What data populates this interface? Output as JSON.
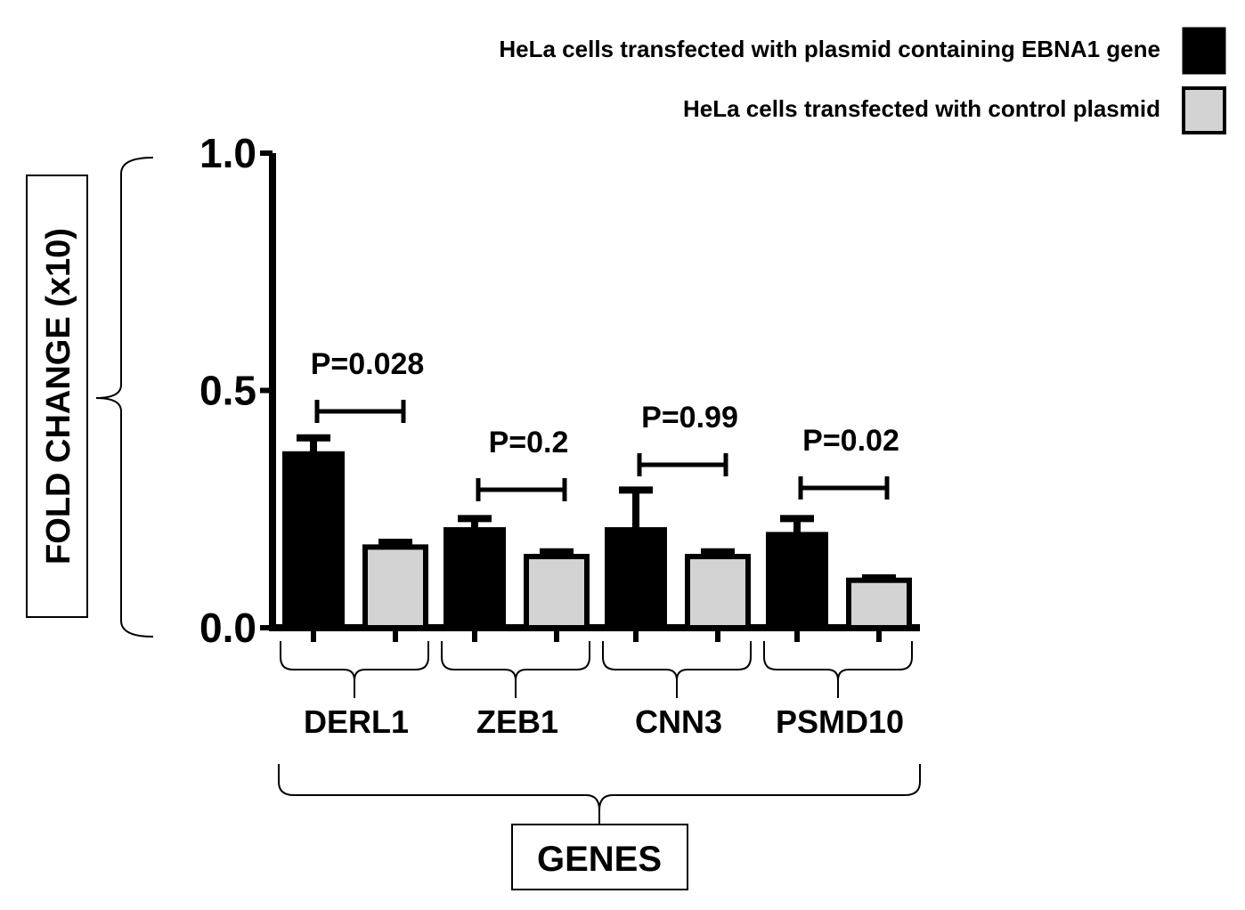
{
  "chart_data": {
    "type": "bar",
    "categories": [
      "DERL1",
      "ZEB1",
      "CNN3",
      "PSMD10"
    ],
    "series": [
      {
        "name": "HeLa cells transfected with plasmid containing EBNA1 gene",
        "color": "#000000",
        "values": [
          0.37,
          0.21,
          0.21,
          0.2
        ],
        "errors": [
          0.03,
          0.02,
          0.08,
          0.03
        ]
      },
      {
        "name": "HeLa cells transfected with control plasmid",
        "color": "#d3d3d3",
        "values": [
          0.17,
          0.15,
          0.15,
          0.1
        ],
        "errors": [
          0.01,
          0.01,
          0.01,
          0.005
        ]
      }
    ],
    "p_values": [
      "P=0.028",
      "P=0.2",
      "P=0.99",
      "P=0.02"
    ],
    "ylabel": "FOLD CHANGE (x10)",
    "xlabel": "GENES",
    "ylim": [
      0,
      1.0
    ],
    "yticks": [
      "0.0",
      "0.5",
      "1.0"
    ],
    "ytick_values": [
      0,
      0.5,
      1.0
    ],
    "legend_position": "top-right",
    "grid": false
  }
}
